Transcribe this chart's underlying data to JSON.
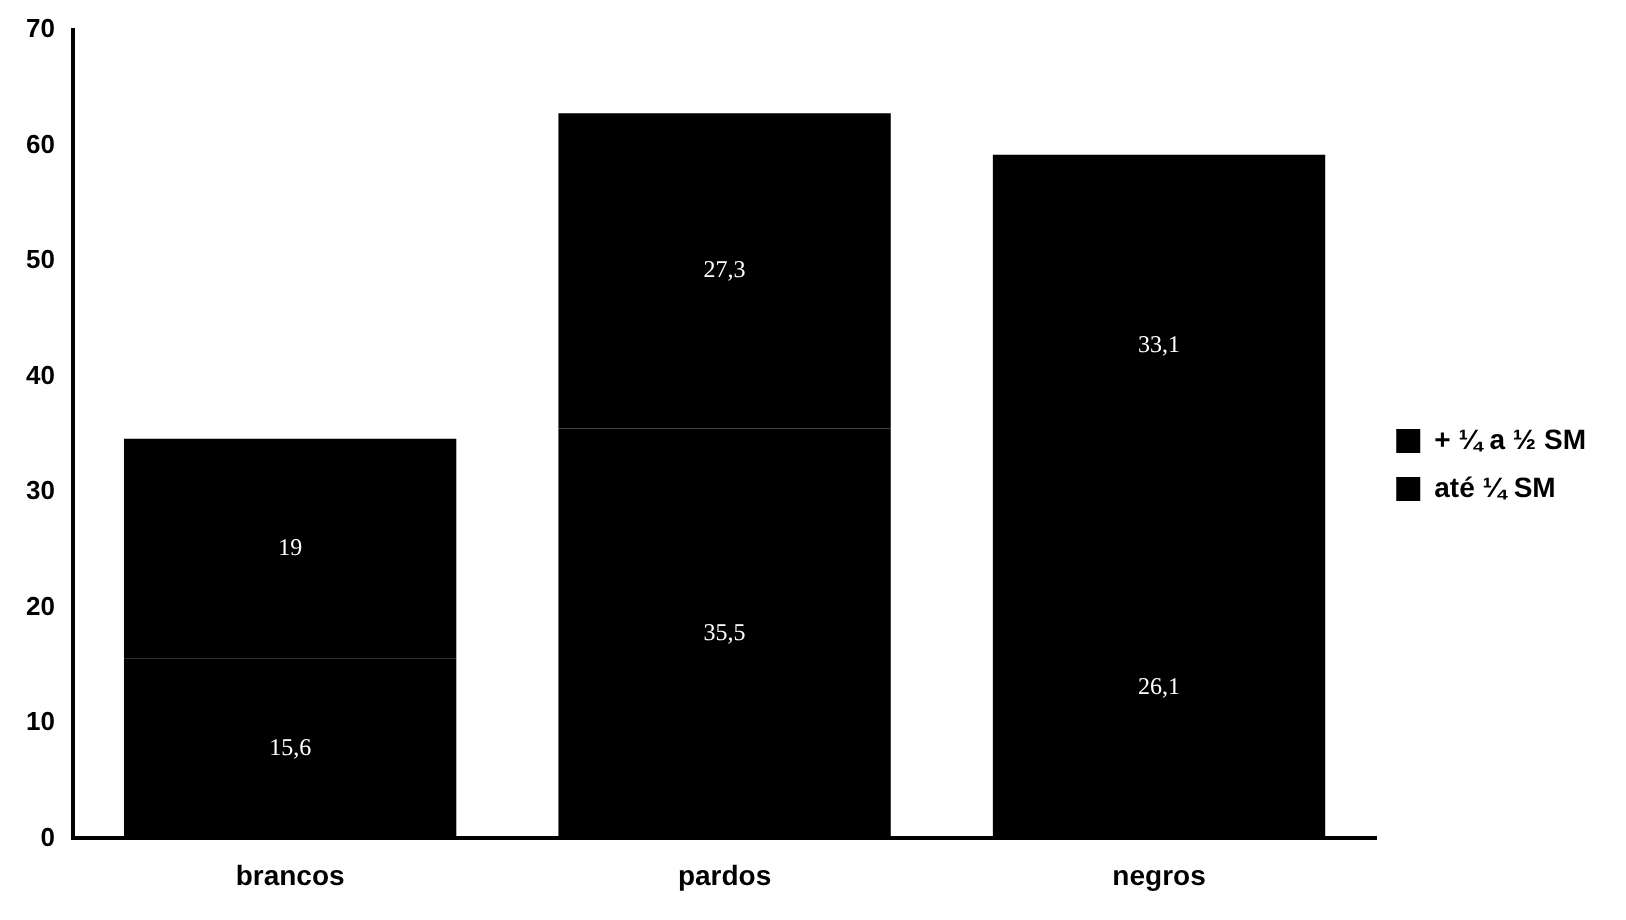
{
  "chart_data": {
    "type": "bar",
    "stacked": true,
    "categories": [
      "brancos",
      "pardos",
      "negros"
    ],
    "series": [
      {
        "name": "até ¼ SM",
        "color": "#000000",
        "values": [
          15.6,
          35.5,
          26.1
        ],
        "value_labels": [
          "15,6",
          "35,5",
          "26,1"
        ]
      },
      {
        "name": "+ ¼ a ½ SM",
        "color": "#000000",
        "values": [
          19,
          27.3,
          33.1
        ],
        "value_labels": [
          "19",
          "27,3",
          "33,1"
        ]
      }
    ],
    "ylim": [
      0,
      70
    ],
    "yticks": [
      0,
      10,
      20,
      30,
      40,
      50,
      60,
      70
    ],
    "grid": false,
    "legend": "right"
  }
}
